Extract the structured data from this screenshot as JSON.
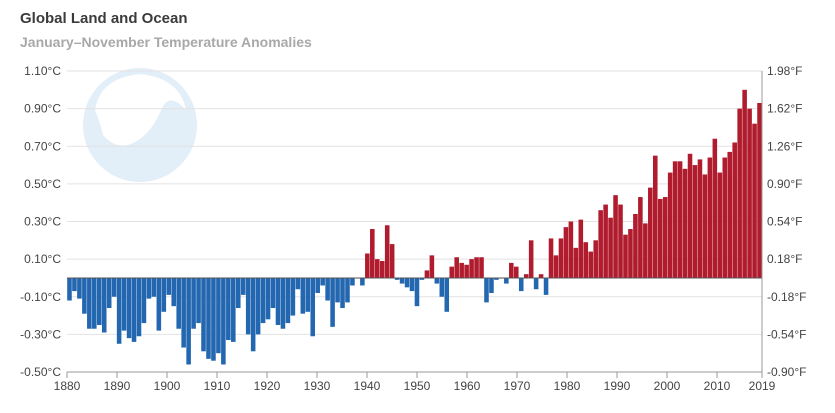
{
  "chart_data": {
    "type": "bar",
    "title": "Global Land and Ocean",
    "subtitle": "January–November Temperature Anomalies",
    "logo_text": "NOAA",
    "colors": {
      "positive": "#b01c2e",
      "negative": "#2367b0"
    },
    "x": [
      1880,
      1881,
      1882,
      1883,
      1884,
      1885,
      1886,
      1887,
      1888,
      1889,
      1890,
      1891,
      1892,
      1893,
      1894,
      1895,
      1896,
      1897,
      1898,
      1899,
      1900,
      1901,
      1902,
      1903,
      1904,
      1905,
      1906,
      1907,
      1908,
      1909,
      1910,
      1911,
      1912,
      1913,
      1914,
      1915,
      1916,
      1917,
      1918,
      1919,
      1920,
      1921,
      1922,
      1923,
      1924,
      1925,
      1926,
      1927,
      1928,
      1929,
      1930,
      1931,
      1932,
      1933,
      1934,
      1935,
      1936,
      1937,
      1938,
      1939,
      1940,
      1941,
      1942,
      1943,
      1944,
      1945,
      1946,
      1947,
      1948,
      1949,
      1950,
      1951,
      1952,
      1953,
      1954,
      1955,
      1956,
      1957,
      1958,
      1959,
      1960,
      1961,
      1962,
      1963,
      1964,
      1965,
      1966,
      1967,
      1968,
      1969,
      1970,
      1971,
      1972,
      1973,
      1974,
      1975,
      1976,
      1977,
      1978,
      1979,
      1980,
      1981,
      1982,
      1983,
      1984,
      1985,
      1986,
      1987,
      1988,
      1989,
      1990,
      1991,
      1992,
      1993,
      1994,
      1995,
      1996,
      1997,
      1998,
      1999,
      2000,
      2001,
      2002,
      2003,
      2004,
      2005,
      2006,
      2007,
      2008,
      2009,
      2010,
      2011,
      2012,
      2013,
      2014,
      2015,
      2016,
      2017,
      2018,
      2019
    ],
    "values": [
      -0.12,
      -0.07,
      -0.11,
      -0.19,
      -0.27,
      -0.27,
      -0.25,
      -0.29,
      -0.16,
      -0.1,
      -0.35,
      -0.28,
      -0.32,
      -0.34,
      -0.31,
      -0.24,
      -0.11,
      -0.1,
      -0.28,
      -0.18,
      -0.09,
      -0.15,
      -0.27,
      -0.37,
      -0.46,
      -0.27,
      -0.24,
      -0.39,
      -0.43,
      -0.44,
      -0.4,
      -0.46,
      -0.33,
      -0.34,
      -0.16,
      -0.09,
      -0.3,
      -0.39,
      -0.3,
      -0.24,
      -0.22,
      -0.16,
      -0.25,
      -0.27,
      -0.24,
      -0.2,
      -0.06,
      -0.19,
      -0.18,
      -0.31,
      -0.08,
      -0.04,
      -0.12,
      -0.26,
      -0.13,
      -0.16,
      -0.13,
      -0.04,
      0.0,
      -0.04,
      0.13,
      0.26,
      0.1,
      0.09,
      0.28,
      0.18,
      -0.01,
      -0.03,
      -0.05,
      -0.07,
      -0.15,
      -0.01,
      0.04,
      0.12,
      -0.03,
      -0.1,
      -0.18,
      0.06,
      0.11,
      0.08,
      0.07,
      0.1,
      0.11,
      0.11,
      -0.13,
      -0.08,
      -0.01,
      0.0,
      -0.03,
      0.08,
      0.06,
      -0.07,
      0.02,
      0.2,
      -0.06,
      0.02,
      -0.09,
      0.21,
      0.12,
      0.21,
      0.27,
      0.3,
      0.16,
      0.31,
      0.19,
      0.14,
      0.2,
      0.36,
      0.39,
      0.32,
      0.44,
      0.39,
      0.23,
      0.26,
      0.34,
      0.43,
      0.29,
      0.48,
      0.65,
      0.42,
      0.43,
      0.56,
      0.62,
      0.62,
      0.58,
      0.66,
      0.6,
      0.63,
      0.55,
      0.64,
      0.74,
      0.56,
      0.64,
      0.67,
      0.72,
      0.9,
      1.0,
      0.9,
      0.82,
      0.93
    ],
    "xlim": [
      1880,
      2019
    ],
    "ylim": [
      -0.5,
      1.1
    ],
    "y_ticks_left": [
      -0.5,
      -0.3,
      -0.1,
      0.1,
      0.3,
      0.5,
      0.7,
      0.9,
      1.1
    ],
    "y_tick_labels_left": [
      "-0.50°C",
      "-0.30°C",
      "-0.10°C",
      "0.10°C",
      "0.30°C",
      "0.50°C",
      "0.70°C",
      "0.90°C",
      "1.10°C"
    ],
    "y_tick_labels_right": [
      "-0.90°F",
      "-0.54°F",
      "-0.18°F",
      "0.18°F",
      "0.54°F",
      "0.90°F",
      "1.26°F",
      "1.62°F",
      "1.98°F"
    ],
    "x_ticks": [
      1880,
      1890,
      1900,
      1910,
      1920,
      1930,
      1940,
      1950,
      1960,
      1970,
      1980,
      1990,
      2000,
      2010,
      2019
    ],
    "x_tick_labels": [
      "1880",
      "1890",
      "1900",
      "1910",
      "1920",
      "1930",
      "1940",
      "1950",
      "1960",
      "1970",
      "1980",
      "1990",
      "2000",
      "2010",
      "2019"
    ],
    "grid": true
  }
}
